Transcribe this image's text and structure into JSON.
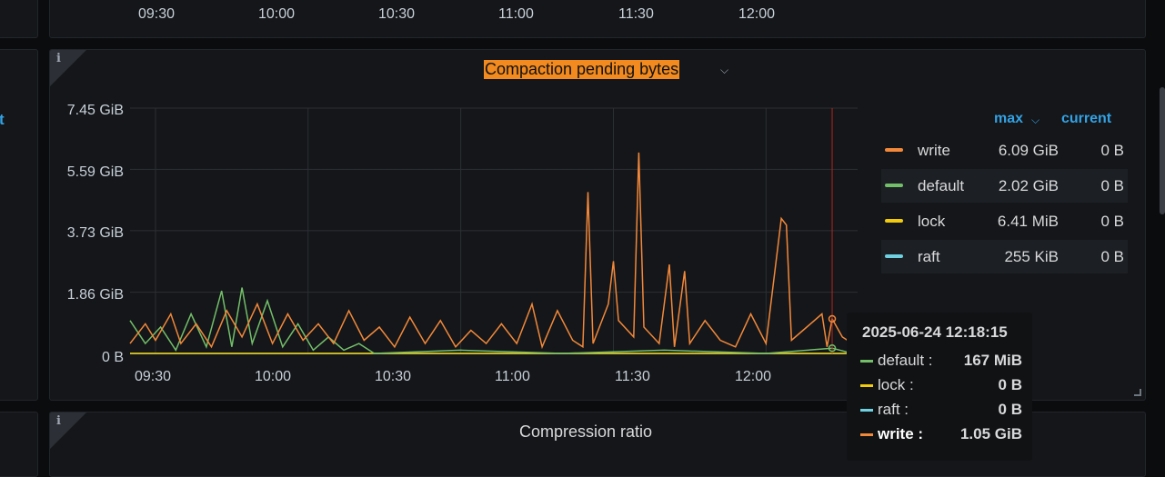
{
  "top_panel": {
    "x_ticks": [
      "09:30",
      "10:00",
      "10:30",
      "11:00",
      "11:30",
      "12:00"
    ]
  },
  "left_panel": {
    "partial_text": "t"
  },
  "panel": {
    "title": "Compaction pending bytes",
    "info_icon": "i",
    "chevron_icon": "chevron-down-icon"
  },
  "bottom_panel": {
    "title": "Compression ratio",
    "info_icon": "i"
  },
  "chart_data": {
    "type": "line",
    "title": "Compaction pending bytes",
    "x_ticks": [
      "09:30",
      "10:00",
      "10:30",
      "11:00",
      "11:30",
      "12:00"
    ],
    "y_ticks": [
      "7.45 GiB",
      "5.59 GiB",
      "3.73 GiB",
      "1.86 GiB",
      "0 B"
    ],
    "ylim": [
      0,
      7.45
    ],
    "xlim_minutes": [
      -5,
      138
    ],
    "cursor_minutes": 133,
    "grid": true,
    "legend_position": "right",
    "series": [
      {
        "name": "write",
        "color": "#f2883a",
        "points": [
          [
            -5,
            0.3
          ],
          [
            -2,
            0.9
          ],
          [
            0,
            0.4
          ],
          [
            3,
            1.2
          ],
          [
            5,
            0.3
          ],
          [
            8,
            0.9
          ],
          [
            11,
            0.2
          ],
          [
            14,
            1.3
          ],
          [
            17,
            0.5
          ],
          [
            20,
            1.5
          ],
          [
            23,
            0.3
          ],
          [
            26,
            1.2
          ],
          [
            29,
            0.4
          ],
          [
            32,
            0.9
          ],
          [
            35,
            0.3
          ],
          [
            38,
            1.3
          ],
          [
            41,
            0.4
          ],
          [
            44,
            0.8
          ],
          [
            47,
            0.2
          ],
          [
            50,
            1.1
          ],
          [
            53,
            0.3
          ],
          [
            56,
            1.0
          ],
          [
            59,
            0.2
          ],
          [
            62,
            0.7
          ],
          [
            65,
            0.3
          ],
          [
            68,
            0.9
          ],
          [
            71,
            0.3
          ],
          [
            74,
            1.5
          ],
          [
            76,
            0.2
          ],
          [
            79,
            1.3
          ],
          [
            82,
            0.4
          ],
          [
            84,
            0.2
          ],
          [
            85,
            4.9
          ],
          [
            86,
            0.3
          ],
          [
            89,
            1.5
          ],
          [
            90,
            2.8
          ],
          [
            91,
            1.0
          ],
          [
            94,
            0.5
          ],
          [
            95,
            6.1
          ],
          [
            96,
            0.8
          ],
          [
            99,
            0.3
          ],
          [
            101,
            2.7
          ],
          [
            102,
            0.2
          ],
          [
            104,
            2.5
          ],
          [
            105,
            0.3
          ],
          [
            108,
            1.0
          ],
          [
            111,
            0.4
          ],
          [
            114,
            0.2
          ],
          [
            117,
            1.2
          ],
          [
            120,
            0.3
          ],
          [
            123,
            4.1
          ],
          [
            124,
            3.9
          ],
          [
            125,
            0.4
          ],
          [
            128,
            0.8
          ],
          [
            131,
            1.2
          ],
          [
            132,
            0.2
          ],
          [
            133,
            1.05
          ],
          [
            135,
            0.5
          ],
          [
            137,
            0.3
          ]
        ]
      },
      {
        "name": "default",
        "color": "#73bf69",
        "points": [
          [
            -5,
            1.0
          ],
          [
            -2,
            0.3
          ],
          [
            1,
            0.8
          ],
          [
            4,
            0.1
          ],
          [
            7,
            1.2
          ],
          [
            10,
            0.2
          ],
          [
            13,
            1.9
          ],
          [
            15,
            0.2
          ],
          [
            17,
            2.0
          ],
          [
            19,
            0.3
          ],
          [
            22,
            1.6
          ],
          [
            25,
            0.2
          ],
          [
            28,
            0.9
          ],
          [
            31,
            0.1
          ],
          [
            34,
            0.5
          ],
          [
            37,
            0.1
          ],
          [
            40,
            0.3
          ],
          [
            43,
            0.0
          ],
          [
            60,
            0.1
          ],
          [
            80,
            0.0
          ],
          [
            100,
            0.1
          ],
          [
            120,
            0.0
          ],
          [
            133,
            0.16
          ],
          [
            137,
            0.0
          ]
        ]
      },
      {
        "name": "lock",
        "color": "#f2cc0c",
        "points": [
          [
            -5,
            0.0
          ],
          [
            137,
            0.0
          ]
        ]
      },
      {
        "name": "raft",
        "color": "#6ed0e0",
        "points": [
          [
            -5,
            0.0
          ],
          [
            137,
            0.0
          ]
        ]
      }
    ]
  },
  "legend": {
    "headers": {
      "max": "max",
      "current": "current"
    },
    "rows": [
      {
        "name": "write",
        "max": "6.09 GiB",
        "current": "0 B",
        "color": "#f2883a"
      },
      {
        "name": "default",
        "max": "2.02 GiB",
        "current": "0 B",
        "color": "#73bf69"
      },
      {
        "name": "lock",
        "max": "6.41 MiB",
        "current": "0 B",
        "color": "#f2cc0c"
      },
      {
        "name": "raft",
        "max": "255 KiB",
        "current": "0 B",
        "color": "#6ed0e0"
      }
    ]
  },
  "tooltip": {
    "timestamp": "2025-06-24 12:18:15",
    "rows": [
      {
        "name": "default :",
        "value": "167 MiB",
        "color": "#73bf69"
      },
      {
        "name": "lock :",
        "value": "0 B",
        "color": "#f2cc0c"
      },
      {
        "name": "raft :",
        "value": "0 B",
        "color": "#6ed0e0"
      },
      {
        "name": "write :",
        "value": "1.05 GiB",
        "color": "#f2883a"
      }
    ]
  }
}
